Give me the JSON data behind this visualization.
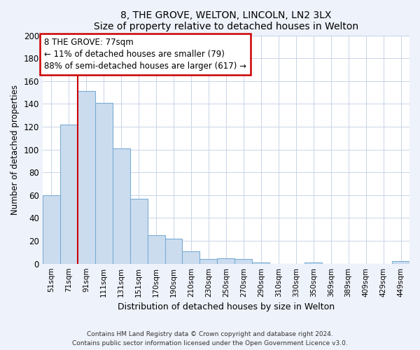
{
  "title": "8, THE GROVE, WELTON, LINCOLN, LN2 3LX",
  "subtitle": "Size of property relative to detached houses in Welton",
  "xlabel": "Distribution of detached houses by size in Welton",
  "ylabel": "Number of detached properties",
  "bar_labels": [
    "51sqm",
    "71sqm",
    "91sqm",
    "111sqm",
    "131sqm",
    "151sqm",
    "170sqm",
    "190sqm",
    "210sqm",
    "230sqm",
    "250sqm",
    "270sqm",
    "290sqm",
    "310sqm",
    "330sqm",
    "350sqm",
    "369sqm",
    "389sqm",
    "409sqm",
    "429sqm",
    "449sqm"
  ],
  "bar_values": [
    60,
    122,
    151,
    141,
    101,
    57,
    25,
    22,
    11,
    4,
    5,
    4,
    1,
    0,
    0,
    1,
    0,
    0,
    0,
    0,
    2
  ],
  "bar_color": "#ccdcef",
  "bar_edge_color": "#7aadd4",
  "vline_x": 1.5,
  "vline_color": "#cc0000",
  "annotation_box_text": "8 THE GROVE: 77sqm\n← 11% of detached houses are smaller (79)\n88% of semi-detached houses are larger (617) →",
  "annotation_box_color": "#ffffff",
  "annotation_box_edge_color": "#cc0000",
  "ylim": [
    0,
    200
  ],
  "yticks": [
    0,
    20,
    40,
    60,
    80,
    100,
    120,
    140,
    160,
    180,
    200
  ],
  "footer_line1": "Contains HM Land Registry data © Crown copyright and database right 2024.",
  "footer_line2": "Contains public sector information licensed under the Open Government Licence v3.0.",
  "bg_color": "#eef2fa",
  "plot_bg_color": "#ffffff",
  "grid_color": "#c8d4e8"
}
